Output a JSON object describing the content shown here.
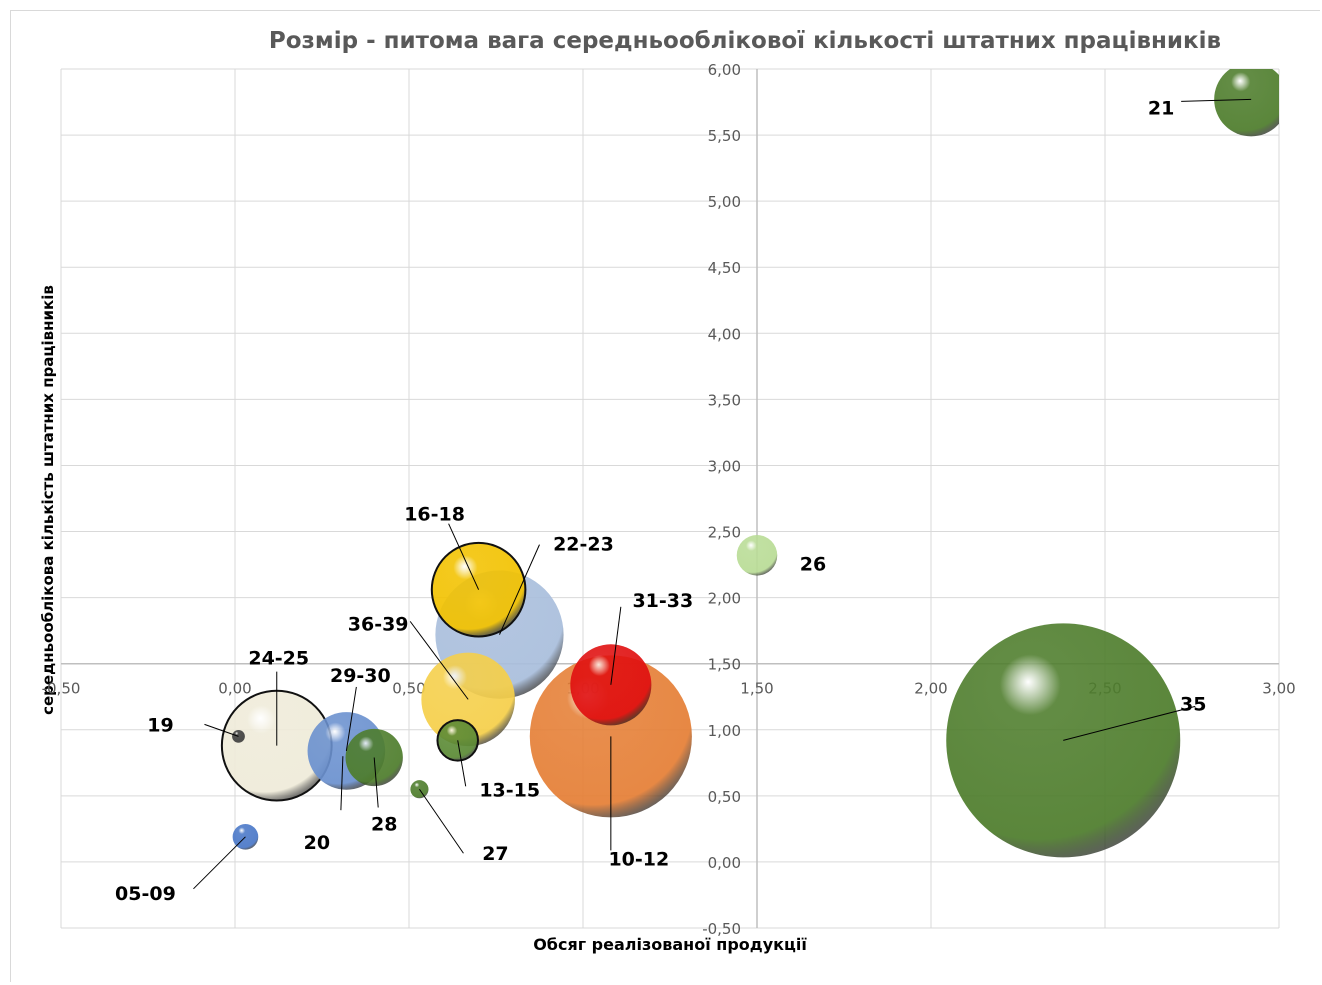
{
  "chart_data": {
    "type": "bubble",
    "title": "Розмір - питома вага середньооблікової кількості штатних працівників",
    "xlabel": "Обсяг реалізованої продукції",
    "ylabel": "середньооблікова кількість штатних працівників",
    "xlim": [
      -0.5,
      3.0
    ],
    "ylim": [
      -0.5,
      6.0
    ],
    "x_ticks": [
      "-0,50",
      "0,00",
      "0,50",
      "1,00",
      "1,50",
      "2,00",
      "2,50",
      "3,00"
    ],
    "y_ticks": [
      "-0,50",
      "0,00",
      "0,50",
      "1,00",
      "1,50",
      "2,00",
      "2,50",
      "3,00",
      "3,50",
      "4,00",
      "4,50",
      "5,00",
      "5,50",
      "6,00"
    ],
    "grid": true,
    "points": [
      {
        "label": "35",
        "x": 2.38,
        "y": 0.92,
        "size": 100,
        "color": "#4e7d2c"
      },
      {
        "label": "10-12",
        "x": 1.08,
        "y": 0.95,
        "size": 48,
        "color": "#e57f36"
      },
      {
        "label": "22-23",
        "x": 0.76,
        "y": 1.72,
        "size": 30,
        "color": "#a9bedc"
      },
      {
        "label": "16-18",
        "x": 0.7,
        "y": 2.06,
        "size": 16,
        "color": "#f2c200"
      },
      {
        "label": "24-25",
        "x": 0.12,
        "y": 0.88,
        "size": 22,
        "color": "#efebd9"
      },
      {
        "label": "36-39",
        "x": 0.67,
        "y": 1.23,
        "size": 16,
        "color": "#f5cf4a"
      },
      {
        "label": "31-33",
        "x": 1.08,
        "y": 1.34,
        "size": 12,
        "color": "#e01010"
      },
      {
        "label": "29-30",
        "x": 0.32,
        "y": 0.84,
        "size": 11,
        "color": "#6b91cf"
      },
      {
        "label": "28",
        "x": 0.4,
        "y": 0.79,
        "size": 6,
        "color": "#4e7d2c"
      },
      {
        "label": "21",
        "x": 2.92,
        "y": 5.77,
        "size": 10,
        "color": "#4e7d2c"
      },
      {
        "label": "13-15",
        "x": 0.64,
        "y": 0.92,
        "size": 3,
        "color": "#5b8a35"
      },
      {
        "label": "26",
        "x": 1.5,
        "y": 2.32,
        "size": 3,
        "color": "#b9dc96"
      },
      {
        "label": "05-09",
        "x": 0.03,
        "y": 0.19,
        "size": 1.2,
        "color": "#4a78c8"
      },
      {
        "label": "27",
        "x": 0.53,
        "y": 0.55,
        "size": 0.6,
        "color": "#4e7d2c"
      },
      {
        "label": "19",
        "x": 0.01,
        "y": 0.95,
        "size": 0.3,
        "color": "#404040"
      },
      {
        "label": "20",
        "x": 0.31,
        "y": 0.8,
        "size": 0,
        "color": "#6b91cf"
      }
    ]
  }
}
